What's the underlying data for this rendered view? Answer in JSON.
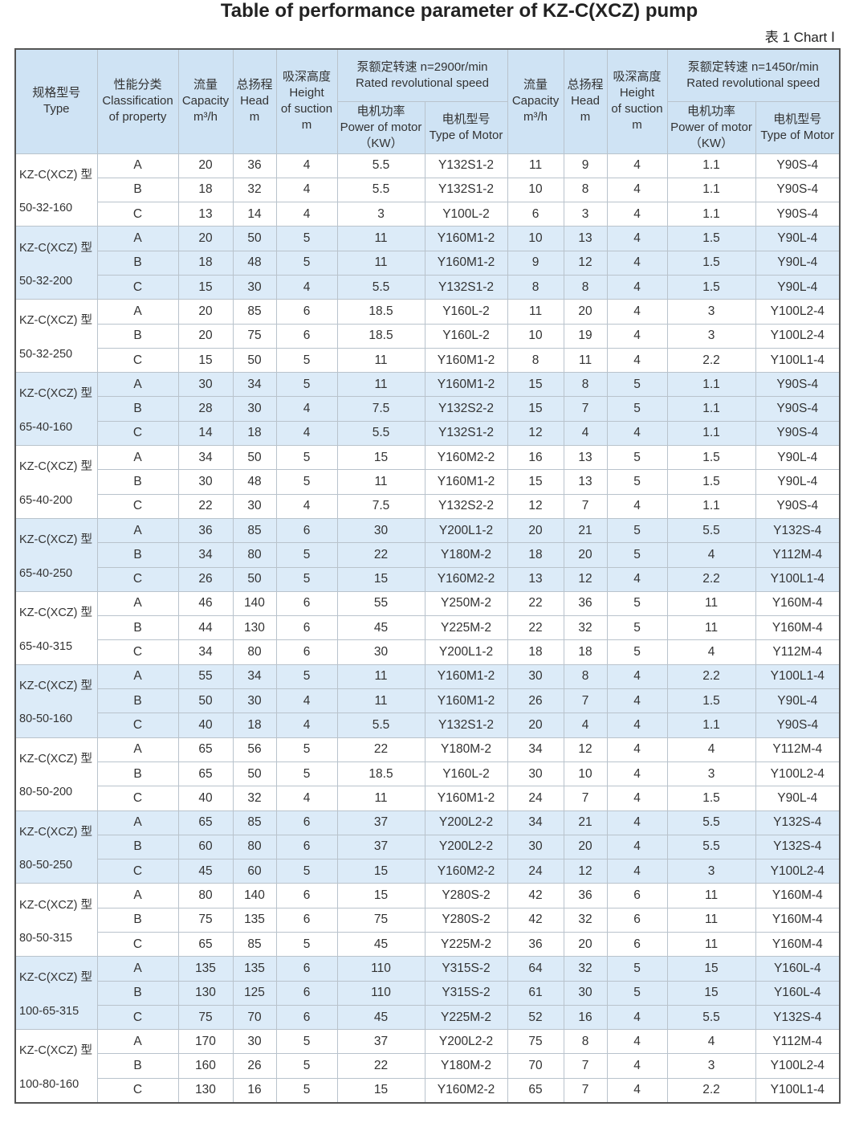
{
  "title": "Table of performance parameter of KZ-C(XCZ) pump",
  "chart_label": "表 1 Chart Ⅰ",
  "header": {
    "cells": [
      {
        "lines": [
          "规格型号",
          "Type"
        ]
      },
      {
        "lines": [
          "性能分类",
          "Classification",
          "of property"
        ]
      },
      {
        "lines": [
          "流量",
          "Capacity",
          "m³/h"
        ]
      },
      {
        "lines": [
          "总扬程",
          "Head",
          "m"
        ]
      },
      {
        "lines": [
          "吸深高度",
          "Height",
          "of suction",
          "m"
        ]
      },
      {
        "lines": [
          "泵额定转速 n=2900r/min",
          "Rated revolutional speed"
        ],
        "sub": [
          [
            "电机功率",
            "Power of motor",
            "（KW）"
          ],
          [
            "电机型号",
            "Type of Motor"
          ]
        ]
      },
      {
        "lines": [
          "流量",
          "Capacity",
          "m³/h"
        ]
      },
      {
        "lines": [
          "总扬程",
          "Head",
          "m"
        ]
      },
      {
        "lines": [
          "吸深高度",
          "Height",
          "of suction",
          "m"
        ]
      },
      {
        "lines": [
          "泵额定转速 n=1450r/min",
          "Rated revolutional speed"
        ],
        "sub": [
          [
            "电机功率",
            "Power of motor",
            "（KW）"
          ],
          [
            "电机型号",
            "Type of Motor"
          ]
        ]
      }
    ]
  },
  "groups": [
    {
      "model": [
        "KZ-C(XCZ) 型",
        "50-32-160"
      ],
      "rows": [
        [
          "A",
          20,
          36,
          4,
          5.5,
          "Y132S1-2",
          11,
          9,
          4,
          1.1,
          "Y90S-4"
        ],
        [
          "B",
          18,
          32,
          4,
          5.5,
          "Y132S1-2",
          10,
          8,
          4,
          1.1,
          "Y90S-4"
        ],
        [
          "C",
          13,
          14,
          4,
          3,
          "Y100L-2",
          6,
          3,
          4,
          1.1,
          "Y90S-4"
        ]
      ]
    },
    {
      "model": [
        "KZ-C(XCZ) 型",
        "50-32-200"
      ],
      "rows": [
        [
          "A",
          20,
          50,
          5,
          11,
          "Y160M1-2",
          10,
          13,
          4,
          1.5,
          "Y90L-4"
        ],
        [
          "B",
          18,
          48,
          5,
          11,
          "Y160M1-2",
          9,
          12,
          4,
          1.5,
          "Y90L-4"
        ],
        [
          "C",
          15,
          30,
          4,
          5.5,
          "Y132S1-2",
          8,
          8,
          4,
          1.5,
          "Y90L-4"
        ]
      ]
    },
    {
      "model": [
        "KZ-C(XCZ) 型",
        "50-32-250"
      ],
      "rows": [
        [
          "A",
          20,
          85,
          6,
          18.5,
          "Y160L-2",
          11,
          20,
          4,
          3,
          "Y100L2-4"
        ],
        [
          "B",
          20,
          75,
          6,
          18.5,
          "Y160L-2",
          10,
          19,
          4,
          3,
          "Y100L2-4"
        ],
        [
          "C",
          15,
          50,
          5,
          11,
          "Y160M1-2",
          8,
          11,
          4,
          2.2,
          "Y100L1-4"
        ]
      ]
    },
    {
      "model": [
        "KZ-C(XCZ) 型",
        "65-40-160"
      ],
      "rows": [
        [
          "A",
          30,
          34,
          5,
          11,
          "Y160M1-2",
          15,
          8,
          5,
          1.1,
          "Y90S-4"
        ],
        [
          "B",
          28,
          30,
          4,
          7.5,
          "Y132S2-2",
          15,
          7,
          5,
          1.1,
          "Y90S-4"
        ],
        [
          "C",
          14,
          18,
          4,
          5.5,
          "Y132S1-2",
          12,
          4,
          4,
          1.1,
          "Y90S-4"
        ]
      ]
    },
    {
      "model": [
        "KZ-C(XCZ) 型",
        "65-40-200"
      ],
      "rows": [
        [
          "A",
          34,
          50,
          5,
          15,
          "Y160M2-2",
          16,
          13,
          5,
          1.5,
          "Y90L-4"
        ],
        [
          "B",
          30,
          48,
          5,
          11,
          "Y160M1-2",
          15,
          13,
          5,
          1.5,
          "Y90L-4"
        ],
        [
          "C",
          22,
          30,
          4,
          7.5,
          "Y132S2-2",
          12,
          7,
          4,
          1.1,
          "Y90S-4"
        ]
      ]
    },
    {
      "model": [
        "KZ-C(XCZ) 型",
        "65-40-250"
      ],
      "rows": [
        [
          "A",
          36,
          85,
          6,
          30,
          "Y200L1-2",
          20,
          21,
          5,
          5.5,
          "Y132S-4"
        ],
        [
          "B",
          34,
          80,
          5,
          22,
          "Y180M-2",
          18,
          20,
          5,
          4,
          "Y112M-4"
        ],
        [
          "C",
          26,
          50,
          5,
          15,
          "Y160M2-2",
          13,
          12,
          4,
          2.2,
          "Y100L1-4"
        ]
      ]
    },
    {
      "model": [
        "KZ-C(XCZ) 型",
        "65-40-315"
      ],
      "rows": [
        [
          "A",
          46,
          140,
          6,
          55,
          "Y250M-2",
          22,
          36,
          5,
          11,
          "Y160M-4"
        ],
        [
          "B",
          44,
          130,
          6,
          45,
          "Y225M-2",
          22,
          32,
          5,
          11,
          "Y160M-4"
        ],
        [
          "C",
          34,
          80,
          6,
          30,
          "Y200L1-2",
          18,
          18,
          5,
          4,
          "Y112M-4"
        ]
      ]
    },
    {
      "model": [
        "KZ-C(XCZ) 型",
        "80-50-160"
      ],
      "rows": [
        [
          "A",
          55,
          34,
          5,
          11,
          "Y160M1-2",
          30,
          8,
          4,
          2.2,
          "Y100L1-4"
        ],
        [
          "B",
          50,
          30,
          4,
          11,
          "Y160M1-2",
          26,
          7,
          4,
          1.5,
          "Y90L-4"
        ],
        [
          "C",
          40,
          18,
          4,
          5.5,
          "Y132S1-2",
          20,
          4,
          4,
          1.1,
          "Y90S-4"
        ]
      ]
    },
    {
      "model": [
        "KZ-C(XCZ) 型",
        "80-50-200"
      ],
      "rows": [
        [
          "A",
          65,
          56,
          5,
          22,
          "Y180M-2",
          34,
          12,
          4,
          4,
          "Y112M-4"
        ],
        [
          "B",
          65,
          50,
          5,
          18.5,
          "Y160L-2",
          30,
          10,
          4,
          3,
          "Y100L2-4"
        ],
        [
          "C",
          40,
          32,
          4,
          11,
          "Y160M1-2",
          24,
          7,
          4,
          1.5,
          "Y90L-4"
        ]
      ]
    },
    {
      "model": [
        "KZ-C(XCZ) 型",
        "80-50-250"
      ],
      "rows": [
        [
          "A",
          65,
          85,
          6,
          37,
          "Y200L2-2",
          34,
          21,
          4,
          5.5,
          "Y132S-4"
        ],
        [
          "B",
          60,
          80,
          6,
          37,
          "Y200L2-2",
          30,
          20,
          4,
          5.5,
          "Y132S-4"
        ],
        [
          "C",
          45,
          60,
          5,
          15,
          "Y160M2-2",
          24,
          12,
          4,
          3,
          "Y100L2-4"
        ]
      ]
    },
    {
      "model": [
        "KZ-C(XCZ) 型",
        "80-50-315"
      ],
      "rows": [
        [
          "A",
          80,
          140,
          6,
          15,
          "Y280S-2",
          42,
          36,
          6,
          11,
          "Y160M-4"
        ],
        [
          "B",
          75,
          135,
          6,
          75,
          "Y280S-2",
          42,
          32,
          6,
          11,
          "Y160M-4"
        ],
        [
          "C",
          65,
          85,
          5,
          45,
          "Y225M-2",
          36,
          20,
          6,
          11,
          "Y160M-4"
        ]
      ]
    },
    {
      "model": [
        "KZ-C(XCZ) 型",
        "100-65-315"
      ],
      "rows": [
        [
          "A",
          135,
          135,
          6,
          110,
          "Y315S-2",
          64,
          32,
          5,
          15,
          "Y160L-4"
        ],
        [
          "B",
          130,
          125,
          6,
          110,
          "Y315S-2",
          61,
          30,
          5,
          15,
          "Y160L-4"
        ],
        [
          "C",
          75,
          70,
          6,
          45,
          "Y225M-2",
          52,
          16,
          4,
          5.5,
          "Y132S-4"
        ]
      ]
    },
    {
      "model": [
        "KZ-C(XCZ) 型",
        "100-80-160"
      ],
      "rows": [
        [
          "A",
          170,
          30,
          5,
          37,
          "Y200L2-2",
          75,
          8,
          4,
          4,
          "Y112M-4"
        ],
        [
          "B",
          160,
          26,
          5,
          22,
          "Y180M-2",
          70,
          7,
          4,
          3,
          "Y100L2-4"
        ],
        [
          "C",
          130,
          16,
          5,
          15,
          "Y160M2-2",
          65,
          7,
          4,
          2.2,
          "Y100L1-4"
        ]
      ]
    }
  ]
}
